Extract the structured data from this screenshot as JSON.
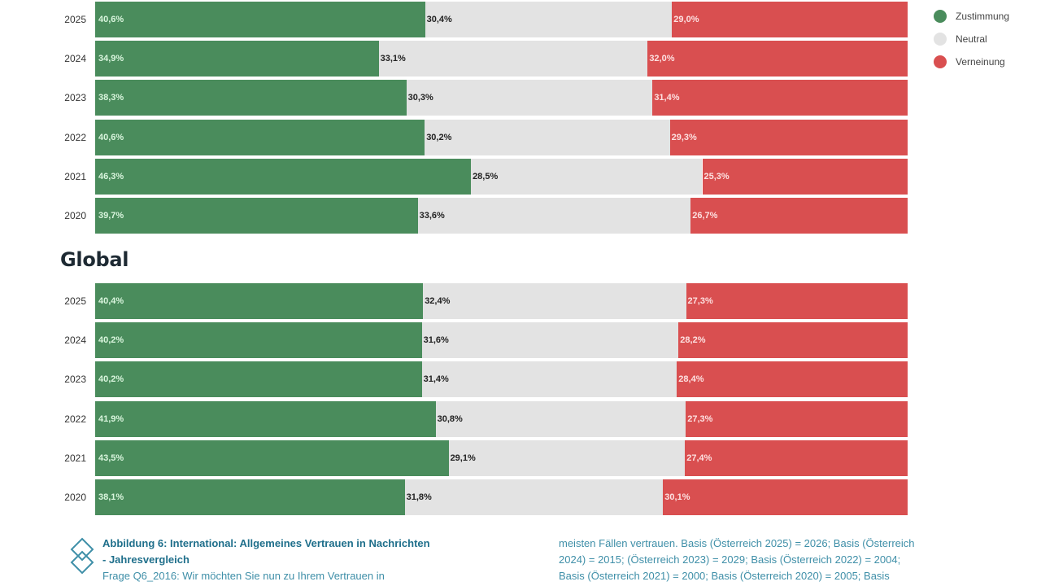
{
  "chart_data": [
    {
      "type": "bar",
      "stacked": true,
      "orientation": "horizontal",
      "normalized_percent": true,
      "title": "",
      "categories": [
        "2025",
        "2024",
        "2023",
        "2022",
        "2021",
        "2020"
      ],
      "series": [
        {
          "name": "Zustimmung",
          "values": [
            40.6,
            34.9,
            38.3,
            40.6,
            46.3,
            39.7
          ],
          "labels": [
            "40,6%",
            "34,9%",
            "38,3%",
            "40,6%",
            "46,3%",
            "39,7%"
          ]
        },
        {
          "name": "Neutral",
          "values": [
            30.4,
            33.1,
            30.3,
            30.2,
            28.5,
            33.6
          ],
          "labels": [
            "30,4%",
            "33,1%",
            "30,3%",
            "30,2%",
            "28,5%",
            "33,6%"
          ]
        },
        {
          "name": "Verneinung",
          "values": [
            29.0,
            32.0,
            31.4,
            29.3,
            25.3,
            26.7
          ],
          "labels": [
            "29,0%",
            "32,0%",
            "31,4%",
            "29,3%",
            "25,3%",
            "26,7%"
          ]
        }
      ],
      "xlim": [
        0,
        100
      ],
      "grid": false
    },
    {
      "type": "bar",
      "stacked": true,
      "orientation": "horizontal",
      "normalized_percent": true,
      "title": "Global",
      "categories": [
        "2025",
        "2024",
        "2023",
        "2022",
        "2021",
        "2020"
      ],
      "series": [
        {
          "name": "Zustimmung",
          "values": [
            40.4,
            40.2,
            40.2,
            41.9,
            43.5,
            38.1
          ],
          "labels": [
            "40,4%",
            "40,2%",
            "40,2%",
            "41,9%",
            "43,5%",
            "38,1%"
          ]
        },
        {
          "name": "Neutral",
          "values": [
            32.4,
            31.6,
            31.4,
            30.8,
            29.1,
            31.8
          ],
          "labels": [
            "32,4%",
            "31,6%",
            "31,4%",
            "30,8%",
            "29,1%",
            "31,8%"
          ]
        },
        {
          "name": "Verneinung",
          "values": [
            27.3,
            28.2,
            28.4,
            27.3,
            27.4,
            30.1
          ],
          "labels": [
            "27,3%",
            "28,2%",
            "28,4%",
            "27,3%",
            "27,4%",
            "30,1%"
          ]
        }
      ],
      "xlim": [
        0,
        100
      ],
      "grid": false
    }
  ],
  "legend": {
    "placement": "top-right",
    "items": [
      {
        "label": "Zustimmung",
        "color": "#4a8c5c"
      },
      {
        "label": "Neutral",
        "color": "#e3e3e3"
      },
      {
        "label": "Verneinung",
        "color": "#d94f50"
      }
    ]
  },
  "colors": {
    "agree": "#4a8c5c",
    "neutral": "#e3e3e3",
    "reject": "#d94f50"
  },
  "sections": {
    "global_title": "Global"
  },
  "caption": {
    "icon": "diamond-stack-icon",
    "title_line1": "Abbildung 6: International: Allgemeines Vertrauen in Nachrichten",
    "title_line2": "- Jahresvergleich",
    "text_col1": "Frage Q6_2016: Wir möchten Sie nun zu Ihrem Vertrauen in",
    "text_col2_line1": "meisten Fällen vertrauen. Basis (Österreich 2025) = 2026; Basis (Österreich",
    "text_col2_line2": "2024) = 2015; (Österreich 2023) = 2029; Basis (Österreich 2022) = 2004;",
    "text_col2_line3": "Basis (Österreich 2021) = 2000; Basis (Österreich 2020) = 2005; Basis"
  }
}
